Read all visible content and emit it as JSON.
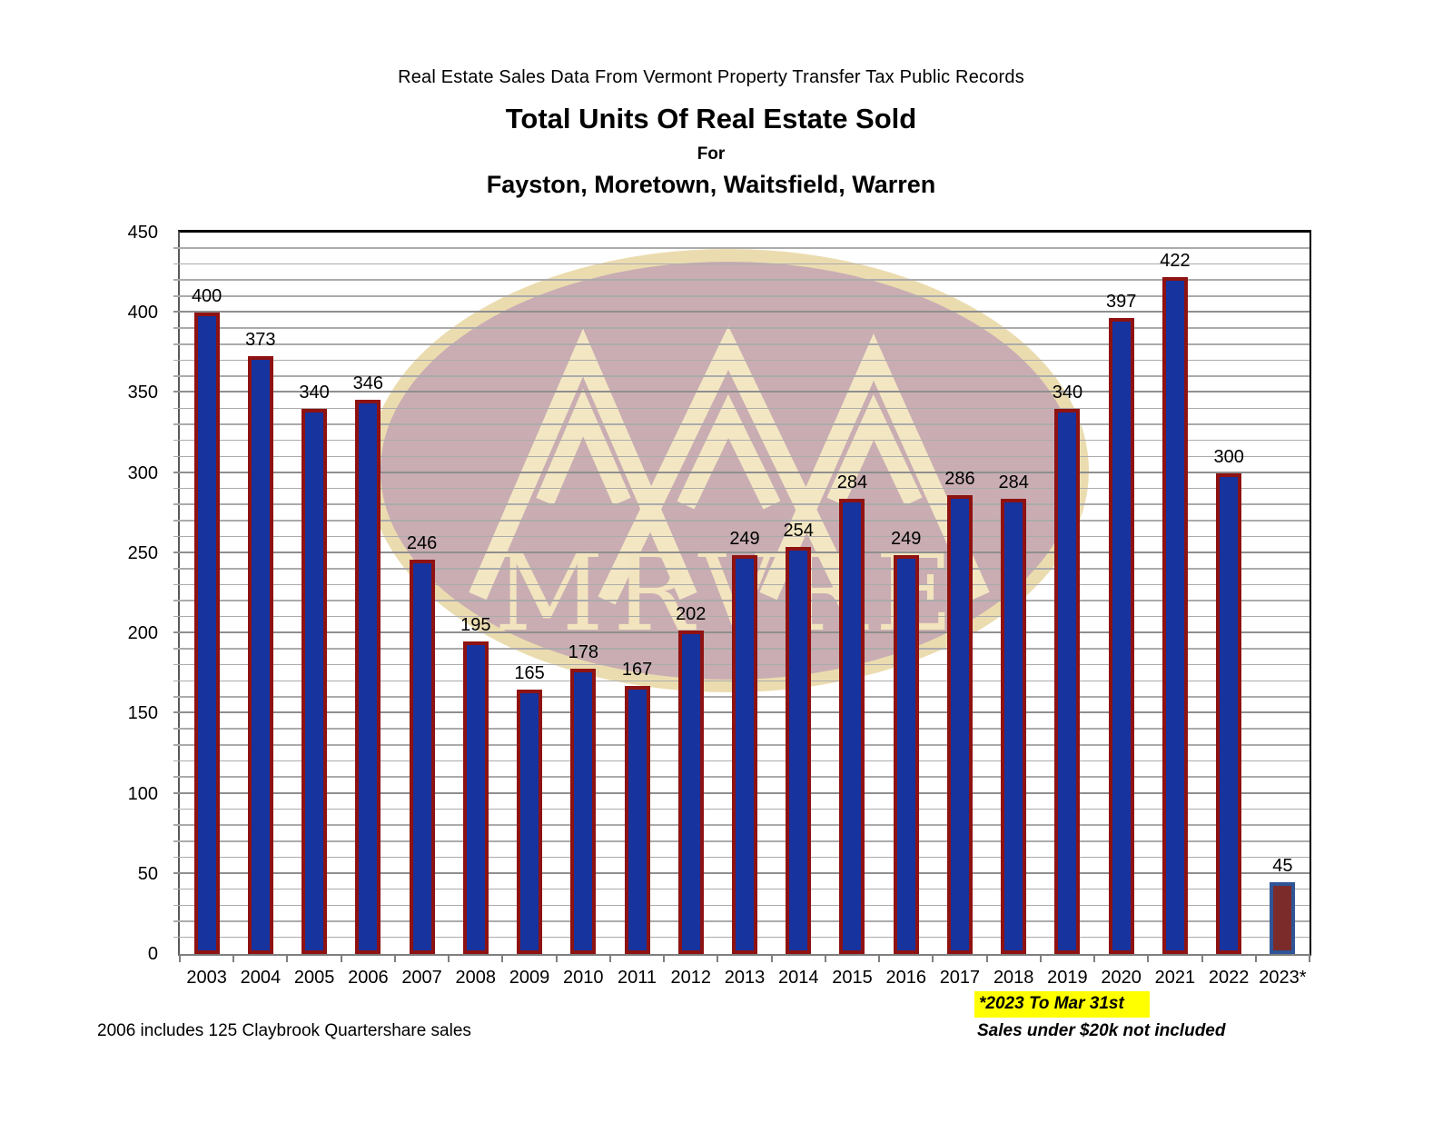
{
  "header": {
    "source_line": "Real Estate Sales Data From Vermont Property Transfer Tax Public Records",
    "title": "Total Units Of Real Estate Sold",
    "for_label": "For",
    "subtitle": "Fayston, Moretown, Waitsfield, Warren"
  },
  "chart_data": {
    "type": "bar",
    "title": "Total Units Of Real Estate Sold",
    "subtitle": "Fayston, Moretown, Waitsfield, Warren",
    "categories": [
      "2003",
      "2004",
      "2005",
      "2006",
      "2007",
      "2008",
      "2009",
      "2010",
      "2011",
      "2012",
      "2013",
      "2014",
      "2015",
      "2016",
      "2017",
      "2018",
      "2019",
      "2020",
      "2021",
      "2022",
      "2023*"
    ],
    "values": [
      400,
      373,
      340,
      346,
      246,
      195,
      165,
      178,
      167,
      202,
      249,
      254,
      284,
      249,
      286,
      284,
      340,
      397,
      422,
      300,
      45
    ],
    "xlabel": "",
    "ylabel": "",
    "ylim": [
      0,
      450
    ],
    "y_major_tick": 50,
    "y_minor_tick": 10,
    "grid": true,
    "legend": "none",
    "data_labels": true,
    "colors": {
      "bar_fill": "#16339E",
      "bar_border": "#8E1212",
      "last_bar_fill": "#7C2B2B",
      "last_bar_border": "#2F5597",
      "grid_minor": "#ABABAB",
      "grid_major": "#8F8F8F",
      "axis": "#7F7F7F",
      "plot_border": "#000000"
    }
  },
  "watermark": {
    "name": "mrv-real-estate-logo",
    "text": "MRVRE",
    "ellipse_fill": "#C9ADB2",
    "rim_color": "#EBDCB0",
    "art_color": "#F3E7C3"
  },
  "footnotes": {
    "claybrook": "2006 includes 125 Claybrook Quartershare sales",
    "asterisk_note": "*2023 To Mar 31st",
    "asterisk_highlight_color": "#FFFF00",
    "sales_note": "Sales under $20k not included"
  }
}
